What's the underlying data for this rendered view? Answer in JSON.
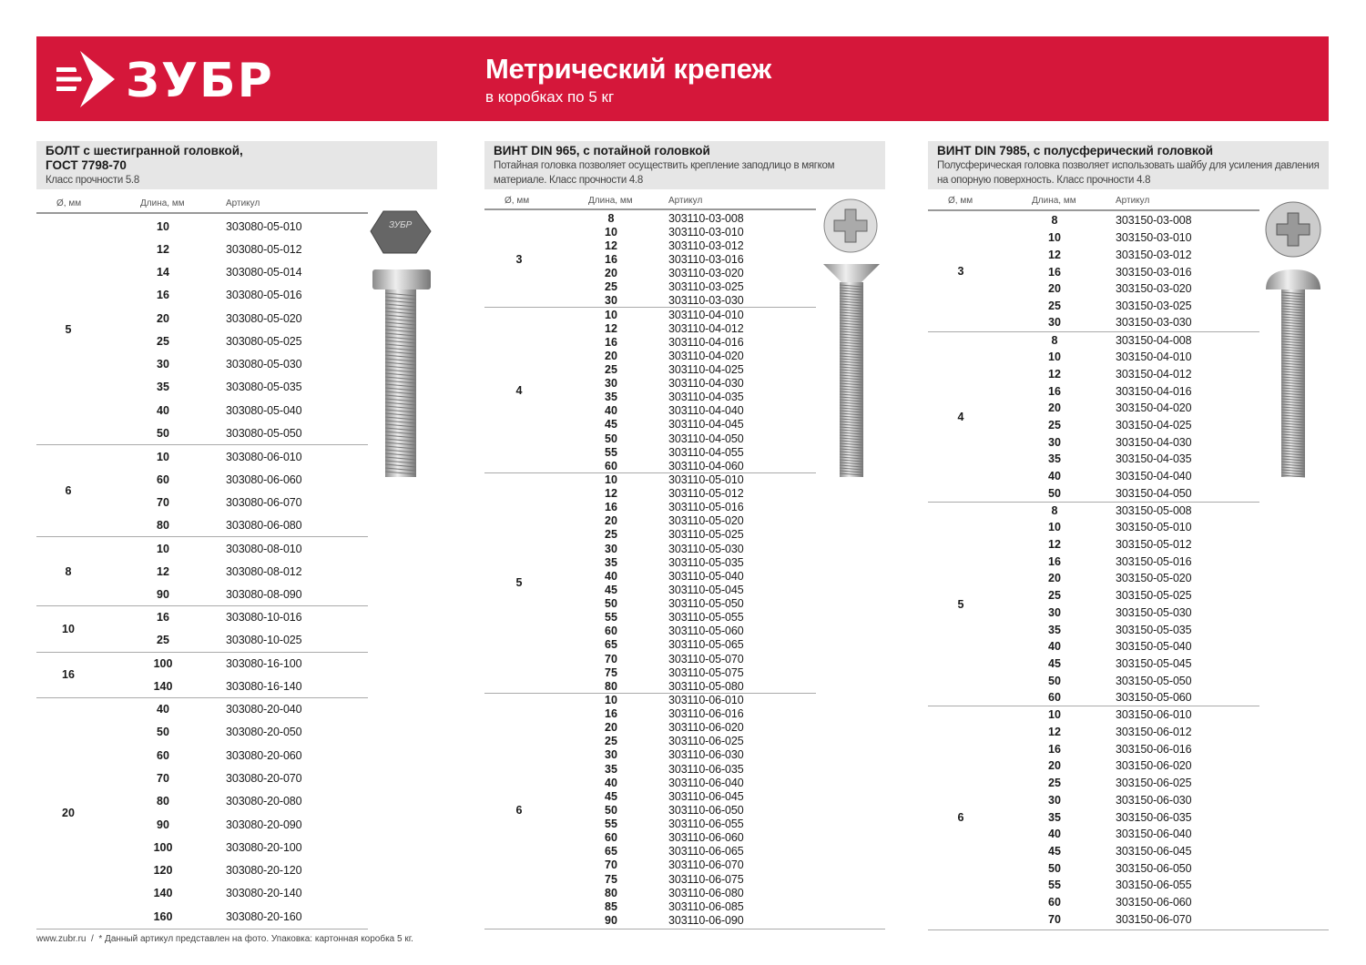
{
  "header": {
    "brand": "ЗУБР",
    "title": "Метрический крепеж",
    "subtitle": "в коробках по 5 кг",
    "brand_color": "#d5173a"
  },
  "columns_labels": {
    "diameter": "Ø, мм",
    "length": "Длина, мм",
    "article": "Артикул"
  },
  "sections": [
    {
      "title_lines": [
        "БОЛТ с шестигранной головкой,",
        "ГОСТ 7798-70"
      ],
      "desc": "Класс прочности 5.8",
      "image": "hex-bolt",
      "groups": [
        {
          "d": "5",
          "rows": [
            [
              "10",
              "303080-05-010"
            ],
            [
              "12",
              "303080-05-012"
            ],
            [
              "14",
              "303080-05-014"
            ],
            [
              "16",
              "303080-05-016"
            ],
            [
              "20",
              "303080-05-020"
            ],
            [
              "25",
              "303080-05-025"
            ],
            [
              "30",
              "303080-05-030"
            ],
            [
              "35",
              "303080-05-035"
            ],
            [
              "40",
              "303080-05-040"
            ],
            [
              "50",
              "303080-05-050"
            ]
          ]
        },
        {
          "d": "6",
          "rows": [
            [
              "10",
              "303080-06-010"
            ],
            [
              "60",
              "303080-06-060"
            ],
            [
              "70",
              "303080-06-070"
            ],
            [
              "80",
              "303080-06-080"
            ]
          ]
        },
        {
          "d": "8",
          "rows": [
            [
              "10",
              "303080-08-010"
            ],
            [
              "12",
              "303080-08-012"
            ],
            [
              "90",
              "303080-08-090"
            ]
          ]
        },
        {
          "d": "10",
          "rows": [
            [
              "16",
              "303080-10-016"
            ],
            [
              "25",
              "303080-10-025"
            ]
          ]
        },
        {
          "d": "16",
          "rows": [
            [
              "100",
              "303080-16-100"
            ],
            [
              "140",
              "303080-16-140"
            ]
          ]
        },
        {
          "d": "20",
          "rows": [
            [
              "40",
              "303080-20-040"
            ],
            [
              "50",
              "303080-20-050"
            ],
            [
              "60",
              "303080-20-060"
            ],
            [
              "70",
              "303080-20-070"
            ],
            [
              "80",
              "303080-20-080"
            ],
            [
              "90",
              "303080-20-090"
            ],
            [
              "100",
              "303080-20-100"
            ],
            [
              "120",
              "303080-20-120"
            ],
            [
              "140",
              "303080-20-140"
            ],
            [
              "160",
              "303080-20-160"
            ]
          ]
        }
      ]
    },
    {
      "title_lines": [
        "ВИНТ DIN 965, с потайной головкой"
      ],
      "desc": "Потайная головка позволяет осуществить крепление заподлицо в мягком материале. Класс прочности 4.8",
      "image": "countersunk-screw",
      "groups": [
        {
          "d": "3",
          "rows": [
            [
              "8",
              "303110-03-008"
            ],
            [
              "10",
              "303110-03-010"
            ],
            [
              "12",
              "303110-03-012"
            ],
            [
              "16",
              "303110-03-016"
            ],
            [
              "20",
              "303110-03-020"
            ],
            [
              "25",
              "303110-03-025"
            ],
            [
              "30",
              "303110-03-030"
            ]
          ]
        },
        {
          "d": "4",
          "rows": [
            [
              "10",
              "303110-04-010"
            ],
            [
              "12",
              "303110-04-012"
            ],
            [
              "16",
              "303110-04-016"
            ],
            [
              "20",
              "303110-04-020"
            ],
            [
              "25",
              "303110-04-025"
            ],
            [
              "30",
              "303110-04-030"
            ],
            [
              "35",
              "303110-04-035"
            ],
            [
              "40",
              "303110-04-040"
            ],
            [
              "45",
              "303110-04-045"
            ],
            [
              "50",
              "303110-04-050"
            ],
            [
              "55",
              "303110-04-055"
            ],
            [
              "60",
              "303110-04-060"
            ]
          ]
        },
        {
          "d": "5",
          "rows": [
            [
              "10",
              "303110-05-010"
            ],
            [
              "12",
              "303110-05-012"
            ],
            [
              "16",
              "303110-05-016"
            ],
            [
              "20",
              "303110-05-020"
            ],
            [
              "25",
              "303110-05-025"
            ],
            [
              "30",
              "303110-05-030"
            ],
            [
              "35",
              "303110-05-035"
            ],
            [
              "40",
              "303110-05-040"
            ],
            [
              "45",
              "303110-05-045"
            ],
            [
              "50",
              "303110-05-050"
            ],
            [
              "55",
              "303110-05-055"
            ],
            [
              "60",
              "303110-05-060"
            ],
            [
              "65",
              "303110-05-065"
            ],
            [
              "70",
              "303110-05-070"
            ],
            [
              "75",
              "303110-05-075"
            ],
            [
              "80",
              "303110-05-080"
            ]
          ]
        },
        {
          "d": "6",
          "rows": [
            [
              "10",
              "303110-06-010"
            ],
            [
              "16",
              "303110-06-016"
            ],
            [
              "20",
              "303110-06-020"
            ],
            [
              "25",
              "303110-06-025"
            ],
            [
              "30",
              "303110-06-030"
            ],
            [
              "35",
              "303110-06-035"
            ],
            [
              "40",
              "303110-06-040"
            ],
            [
              "45",
              "303110-06-045"
            ],
            [
              "50",
              "303110-06-050"
            ],
            [
              "55",
              "303110-06-055"
            ],
            [
              "60",
              "303110-06-060"
            ],
            [
              "65",
              "303110-06-065"
            ],
            [
              "70",
              "303110-06-070"
            ],
            [
              "75",
              "303110-06-075"
            ],
            [
              "80",
              "303110-06-080"
            ],
            [
              "85",
              "303110-06-085"
            ],
            [
              "90",
              "303110-06-090"
            ]
          ]
        }
      ]
    },
    {
      "title_lines": [
        "ВИНТ DIN 7985, с полусферический головкой"
      ],
      "desc": "Полусферическая головка позволяет использовать шайбу для усиления давления на опорную поверхность. Класс прочности 4.8",
      "image": "pan-head-screw",
      "groups": [
        {
          "d": "3",
          "rows": [
            [
              "8",
              "303150-03-008"
            ],
            [
              "10",
              "303150-03-010"
            ],
            [
              "12",
              "303150-03-012"
            ],
            [
              "16",
              "303150-03-016"
            ],
            [
              "20",
              "303150-03-020"
            ],
            [
              "25",
              "303150-03-025"
            ],
            [
              "30",
              "303150-03-030"
            ]
          ]
        },
        {
          "d": "4",
          "rows": [
            [
              "8",
              "303150-04-008"
            ],
            [
              "10",
              "303150-04-010"
            ],
            [
              "12",
              "303150-04-012"
            ],
            [
              "16",
              "303150-04-016"
            ],
            [
              "20",
              "303150-04-020"
            ],
            [
              "25",
              "303150-04-025"
            ],
            [
              "30",
              "303150-04-030"
            ],
            [
              "35",
              "303150-04-035"
            ],
            [
              "40",
              "303150-04-040"
            ],
            [
              "50",
              "303150-04-050"
            ]
          ]
        },
        {
          "d": "5",
          "rows": [
            [
              "8",
              "303150-05-008"
            ],
            [
              "10",
              "303150-05-010"
            ],
            [
              "12",
              "303150-05-012"
            ],
            [
              "16",
              "303150-05-016"
            ],
            [
              "20",
              "303150-05-020"
            ],
            [
              "25",
              "303150-05-025"
            ],
            [
              "30",
              "303150-05-030"
            ],
            [
              "35",
              "303150-05-035"
            ],
            [
              "40",
              "303150-05-040"
            ],
            [
              "45",
              "303150-05-045"
            ],
            [
              "50",
              "303150-05-050"
            ],
            [
              "60",
              "303150-05-060"
            ]
          ]
        },
        {
          "d": "6",
          "rows": [
            [
              "10",
              "303150-06-010"
            ],
            [
              "12",
              "303150-06-012"
            ],
            [
              "16",
              "303150-06-016"
            ],
            [
              "20",
              "303150-06-020"
            ],
            [
              "25",
              "303150-06-025"
            ],
            [
              "30",
              "303150-06-030"
            ],
            [
              "35",
              "303150-06-035"
            ],
            [
              "40",
              "303150-06-040"
            ],
            [
              "45",
              "303150-06-045"
            ],
            [
              "50",
              "303150-06-050"
            ],
            [
              "55",
              "303150-06-055"
            ],
            [
              "60",
              "303150-06-060"
            ],
            [
              "70",
              "303150-06-070"
            ]
          ]
        }
      ]
    }
  ],
  "footer": {
    "site": "www.zubr.ru",
    "separator": "/",
    "note": "* Данный артикул представлен на фото. Упаковка: картонная коробка 5 кг."
  }
}
